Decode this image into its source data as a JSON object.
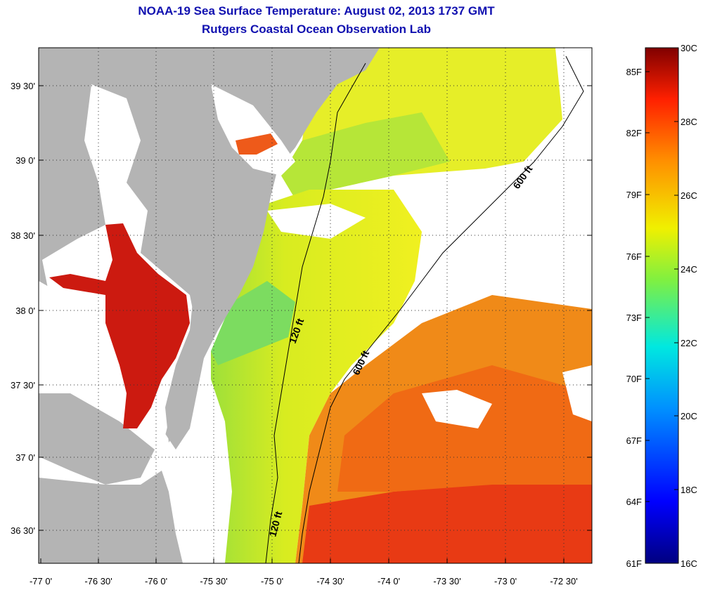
{
  "title": "NOAA-19 Sea Surface Temperature:  August 02, 2013 1737 GMT",
  "subtitle": "Rutgers Coastal Ocean Observation Lab",
  "lat_labels": [
    "39 30'",
    "39 0'",
    "38 30'",
    "38 0'",
    "37 30'",
    "37 0'",
    "36 30'"
  ],
  "lon_labels": [
    "-77 0'",
    "-76 30'",
    "-76 0'",
    "-75 30'",
    "-75 0'",
    "-74 30'",
    "-74 0'",
    "-73 30'",
    "-73 0'",
    "-72 30'"
  ],
  "contours": [
    "120 ft",
    "600 ft",
    "120 ft",
    "600 ft"
  ],
  "colorbar": {
    "celsius": [
      "30C",
      "28C",
      "26C",
      "24C",
      "22C",
      "20C",
      "18C",
      "16C"
    ],
    "fahrenheit": [
      "85F",
      "82F",
      "79F",
      "76F",
      "73F",
      "70F",
      "67F",
      "64F",
      "61F"
    ]
  },
  "colors": {
    "land": "#b4b4b4",
    "no_data": "#ffffff",
    "title": "#1010b0",
    "bay_hot": "#cc1a10",
    "offshore_warm": "#f07010",
    "shelf_cool": "#9ee03a"
  }
}
